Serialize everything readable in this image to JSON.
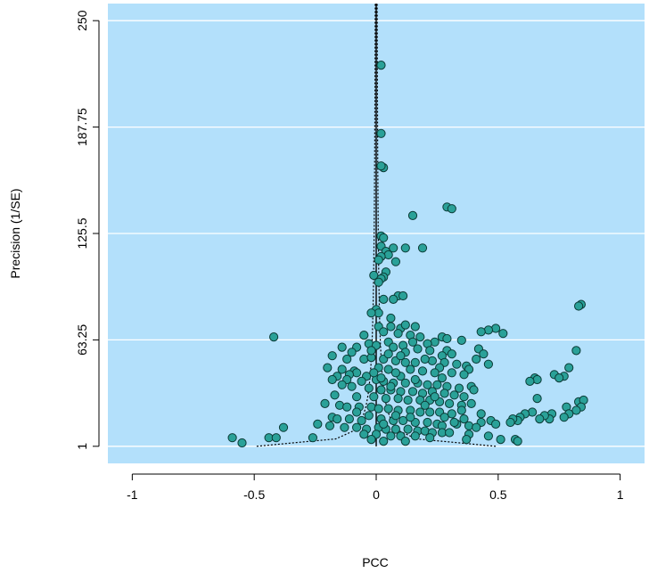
{
  "chart_data": {
    "type": "scatter",
    "title": "",
    "xlabel": "PCC",
    "ylabel": "Precision (1/SE)",
    "xlim": [
      -1.1,
      1.1
    ],
    "ylim": [
      -9,
      260
    ],
    "x_ticks": [
      -1,
      -0.5,
      0,
      0.5,
      1
    ],
    "x_tick_labels": [
      "-1",
      "-0.5",
      "0",
      "0.5",
      "1"
    ],
    "y_ticks": [
      1,
      63.25,
      125.5,
      187.75,
      250
    ],
    "y_tick_labels": [
      "1",
      "63.25",
      "125.5",
      "187.75",
      "250"
    ],
    "grid": true,
    "grid_lines": "horizontal",
    "background_color": "#b3e0fb",
    "grid_color": "#ffffff",
    "point_fill": "#2aa198",
    "point_stroke": "#0b3b36",
    "funnel_center_x": 0.0,
    "points": [
      [
        0.02,
        224
      ],
      [
        0.02,
        184
      ],
      [
        0.03,
        164
      ],
      [
        0.02,
        165
      ],
      [
        0.29,
        141
      ],
      [
        0.31,
        140
      ],
      [
        0.15,
        136
      ],
      [
        0.02,
        124
      ],
      [
        0.03,
        123
      ],
      [
        0.02,
        118
      ],
      [
        0.19,
        117
      ],
      [
        0.12,
        117
      ],
      [
        0.07,
        117
      ],
      [
        0.04,
        115
      ],
      [
        0.05,
        113
      ],
      [
        0.02,
        112
      ],
      [
        0.01,
        110
      ],
      [
        0.08,
        109
      ],
      [
        0.04,
        103
      ],
      [
        -0.01,
        101
      ],
      [
        0.03,
        100
      ],
      [
        0.02,
        99
      ],
      [
        0.01,
        97
      ],
      [
        0.09,
        89
      ],
      [
        0.11,
        89
      ],
      [
        0.03,
        87
      ],
      [
        0.07,
        87
      ],
      [
        0.84,
        84
      ],
      [
        0.83,
        83
      ],
      [
        0.0,
        81
      ],
      [
        0.01,
        79
      ],
      [
        -0.02,
        79
      ],
      [
        0.06,
        76
      ],
      [
        0.49,
        70
      ],
      [
        0.46,
        69
      ],
      [
        0.52,
        67
      ],
      [
        0.43,
        68
      ],
      [
        -0.42,
        65
      ],
      [
        0.01,
        71
      ],
      [
        0.06,
        71
      ],
      [
        0.1,
        70
      ],
      [
        0.12,
        72
      ],
      [
        0.16,
        71
      ],
      [
        0.03,
        68
      ],
      [
        -0.05,
        66
      ],
      [
        0.09,
        67
      ],
      [
        0.14,
        66
      ],
      [
        0.18,
        65
      ],
      [
        0.27,
        65
      ],
      [
        0.29,
        64
      ],
      [
        0.24,
        62
      ],
      [
        0.21,
        61
      ],
      [
        0.35,
        63
      ],
      [
        0.05,
        62
      ],
      [
        -0.03,
        61
      ],
      [
        0.0,
        60
      ],
      [
        0.07,
        59
      ],
      [
        -0.14,
        59
      ],
      [
        -0.08,
        59
      ],
      [
        0.11,
        60
      ],
      [
        0.17,
        58
      ],
      [
        0.22,
        57
      ],
      [
        0.29,
        57
      ],
      [
        0.31,
        55
      ],
      [
        0.27,
        54
      ],
      [
        0.42,
        58
      ],
      [
        0.44,
        55
      ],
      [
        0.41,
        52
      ],
      [
        0.37,
        48
      ],
      [
        0.38,
        46
      ],
      [
        0.46,
        49
      ],
      [
        0.82,
        57
      ],
      [
        0.79,
        47
      ],
      [
        0.73,
        43
      ],
      [
        0.77,
        42
      ],
      [
        0.75,
        41
      ],
      [
        0.65,
        41
      ],
      [
        0.66,
        40
      ],
      [
        0.63,
        39
      ],
      [
        -0.1,
        56
      ],
      [
        -0.18,
        54
      ],
      [
        -0.12,
        52
      ],
      [
        -0.05,
        52
      ],
      [
        -0.02,
        53
      ],
      [
        0.03,
        52
      ],
      [
        0.08,
        51
      ],
      [
        0.12,
        50
      ],
      [
        0.16,
        50
      ],
      [
        0.23,
        51
      ],
      [
        0.28,
        50
      ],
      [
        0.33,
        49
      ],
      [
        0.26,
        47
      ],
      [
        -0.2,
        47
      ],
      [
        -0.14,
        46
      ],
      [
        -0.09,
        45
      ],
      [
        0.01,
        47
      ],
      [
        0.05,
        46
      ],
      [
        0.14,
        46
      ],
      [
        0.19,
        45
      ],
      [
        0.24,
        44
      ],
      [
        0.31,
        44
      ],
      [
        0.36,
        43
      ],
      [
        -0.08,
        44
      ],
      [
        -0.11,
        43
      ],
      [
        -0.16,
        42
      ],
      [
        -0.04,
        42
      ],
      [
        0.1,
        42
      ],
      [
        -0.18,
        40
      ],
      [
        -0.12,
        40
      ],
      [
        -0.06,
        39
      ],
      [
        0.0,
        40
      ],
      [
        0.03,
        39
      ],
      [
        0.07,
        38
      ],
      [
        0.12,
        38
      ],
      [
        0.17,
        38
      ],
      [
        0.21,
        37
      ],
      [
        0.25,
        37
      ],
      [
        0.29,
        36
      ],
      [
        0.34,
        35
      ],
      [
        0.39,
        36
      ],
      [
        0.4,
        34
      ],
      [
        -0.14,
        37
      ],
      [
        -0.1,
        36
      ],
      [
        -0.03,
        35
      ],
      [
        0.02,
        34
      ],
      [
        0.06,
        34
      ],
      [
        0.1,
        33
      ],
      [
        0.15,
        33
      ],
      [
        0.19,
        32
      ],
      [
        0.23,
        33
      ],
      [
        0.28,
        32
      ],
      [
        0.32,
        31
      ],
      [
        0.36,
        30
      ],
      [
        0.66,
        29
      ],
      [
        -0.17,
        31
      ],
      [
        -0.08,
        30
      ],
      [
        -0.01,
        30
      ],
      [
        0.04,
        29
      ],
      [
        0.09,
        29
      ],
      [
        0.13,
        28
      ],
      [
        0.18,
        28
      ],
      [
        0.22,
        28
      ],
      [
        0.26,
        27
      ],
      [
        0.3,
        26
      ],
      [
        0.35,
        25
      ],
      [
        0.39,
        26
      ],
      [
        0.83,
        27
      ],
      [
        0.85,
        28
      ],
      [
        0.84,
        24
      ],
      [
        0.82,
        22
      ],
      [
        0.78,
        24
      ],
      [
        0.79,
        20
      ],
      [
        0.77,
        18
      ],
      [
        0.72,
        20
      ],
      [
        0.71,
        17
      ],
      [
        0.69,
        19
      ],
      [
        0.67,
        17
      ],
      [
        0.64,
        21
      ],
      [
        0.61,
        20
      ],
      [
        0.59,
        18
      ],
      [
        0.58,
        16
      ],
      [
        0.56,
        17
      ],
      [
        0.55,
        15
      ],
      [
        -0.21,
        26
      ],
      [
        -0.15,
        25
      ],
      [
        -0.12,
        24
      ],
      [
        -0.07,
        24
      ],
      [
        -0.02,
        24
      ],
      [
        0.01,
        23
      ],
      [
        0.05,
        23
      ],
      [
        0.09,
        22
      ],
      [
        0.14,
        22
      ],
      [
        0.18,
        21
      ],
      [
        0.22,
        21
      ],
      [
        0.26,
        21
      ],
      [
        0.31,
        20
      ],
      [
        0.35,
        22
      ],
      [
        0.43,
        20
      ],
      [
        0.47,
        16
      ],
      [
        0.49,
        14
      ],
      [
        0.43,
        15
      ],
      [
        -0.18,
        18
      ],
      [
        -0.16,
        17
      ],
      [
        -0.11,
        17
      ],
      [
        -0.06,
        16
      ],
      [
        0.02,
        17
      ],
      [
        0.07,
        16
      ],
      [
        0.11,
        16
      ],
      [
        0.16,
        15
      ],
      [
        0.21,
        15
      ],
      [
        0.25,
        14
      ],
      [
        0.27,
        13
      ],
      [
        0.33,
        14
      ],
      [
        0.38,
        13
      ],
      [
        0.41,
        12
      ],
      [
        -0.24,
        14
      ],
      [
        -0.19,
        13
      ],
      [
        -0.13,
        12
      ],
      [
        -0.08,
        12
      ],
      [
        -0.04,
        11
      ],
      [
        0.01,
        12
      ],
      [
        0.04,
        11
      ],
      [
        0.08,
        11
      ],
      [
        0.13,
        11
      ],
      [
        0.17,
        10
      ],
      [
        0.2,
        10
      ],
      [
        0.23,
        9
      ],
      [
        0.27,
        9
      ],
      [
        0.3,
        9
      ],
      [
        0.38,
        8
      ],
      [
        0.46,
        7
      ],
      [
        -0.05,
        8
      ],
      [
        0.0,
        8
      ],
      [
        0.06,
        7
      ],
      [
        0.1,
        7
      ],
      [
        0.16,
        7
      ],
      [
        0.22,
        6
      ],
      [
        0.37,
        5
      ],
      [
        0.51,
        5
      ],
      [
        0.57,
        5
      ],
      [
        0.58,
        4
      ],
      [
        -0.02,
        5
      ],
      [
        0.03,
        4
      ],
      [
        0.12,
        4
      ],
      [
        -0.26,
        6
      ],
      [
        -0.38,
        12
      ],
      [
        -0.44,
        6
      ],
      [
        -0.41,
        6
      ],
      [
        -0.59,
        6
      ],
      [
        -0.55,
        3
      ],
      [
        0.08,
        44
      ],
      [
        0.12,
        56
      ],
      [
        0.15,
        62
      ],
      [
        0.2,
        52
      ],
      [
        -0.02,
        57
      ],
      [
        0.05,
        55
      ],
      [
        0.1,
        54
      ],
      [
        -0.01,
        44
      ],
      [
        0.02,
        41
      ],
      [
        0.06,
        36
      ],
      [
        0.16,
        40
      ],
      [
        0.27,
        41
      ],
      [
        0.24,
        30
      ],
      [
        0.2,
        25
      ],
      [
        0.14,
        18
      ],
      [
        0.08,
        19
      ],
      [
        0.03,
        14
      ],
      [
        -0.03,
        19
      ],
      [
        -0.08,
        21
      ],
      [
        0.28,
        18
      ],
      [
        0.32,
        15
      ],
      [
        0.36,
        17
      ]
    ]
  }
}
